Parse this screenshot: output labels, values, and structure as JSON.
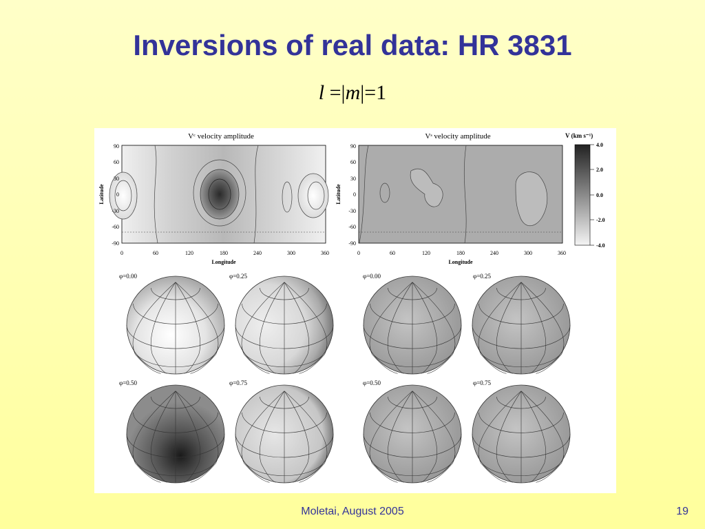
{
  "slide": {
    "title": "Inversions of real data: HR 3831",
    "formula": {
      "l": "l",
      "eq1": "=|",
      "m": "m",
      "eq2": "|=1"
    },
    "footer": "Moletai, August 2005",
    "page_number": "19"
  },
  "figure": {
    "left_map": {
      "title": "Vᶜ velocity amplitude",
      "ylabel": "Latitude",
      "xlabel": "Longitude",
      "yticks": [
        "90",
        "60",
        "30",
        "0",
        "-30",
        "-60",
        "-90"
      ],
      "xticks": [
        "0",
        "60",
        "120",
        "180",
        "240",
        "300",
        "360"
      ]
    },
    "right_map": {
      "title": "Vˢ velocity amplitude",
      "ylabel": "Latitude",
      "xlabel": "Longitude",
      "yticks": [
        "90",
        "60",
        "30",
        "0",
        "-30",
        "-60",
        "-90"
      ],
      "xticks": [
        "0",
        "60",
        "120",
        "180",
        "240",
        "300",
        "360"
      ]
    },
    "colorbar": {
      "title": "V (km s⁻¹)",
      "ticks": [
        "4.0",
        "2.0",
        "0.0",
        "-2.0",
        "-4.0"
      ],
      "range": [
        -4.0,
        4.0
      ]
    },
    "left_phase_labels": [
      "φ=0.00",
      "φ=0.25",
      "φ=0.50",
      "φ=0.75"
    ],
    "right_phase_labels": [
      "φ=0.00",
      "φ=0.25",
      "φ=0.50",
      "φ=0.75"
    ]
  }
}
